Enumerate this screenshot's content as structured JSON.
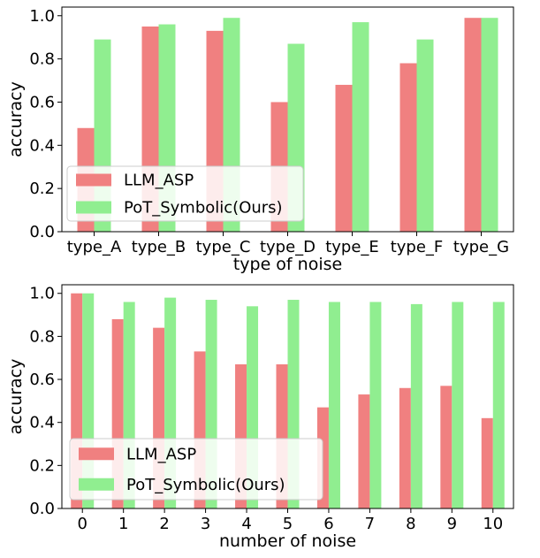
{
  "chart_data": [
    {
      "type": "bar",
      "categories": [
        "type_A",
        "type_B",
        "type_C",
        "type_D",
        "type_E",
        "type_F",
        "type_G"
      ],
      "series": [
        {
          "name": "LLM_ASP",
          "color": "#f08080",
          "values": [
            0.48,
            0.95,
            0.93,
            0.6,
            0.68,
            0.78,
            0.99
          ]
        },
        {
          "name": "PoT_Symbolic(Ours)",
          "color": "#90ee90",
          "values": [
            0.89,
            0.96,
            0.99,
            0.87,
            0.97,
            0.89,
            0.99
          ]
        }
      ],
      "xlabel": "type of noise",
      "ylabel": "accuracy",
      "ylim": [
        0.0,
        1.04
      ],
      "yticks": [
        "0.0",
        "0.2",
        "0.4",
        "0.6",
        "0.8",
        "1.0"
      ],
      "legend": "lower-left",
      "grid": false
    },
    {
      "type": "bar",
      "categories": [
        "0",
        "1",
        "2",
        "3",
        "4",
        "5",
        "6",
        "7",
        "8",
        "9",
        "10"
      ],
      "series": [
        {
          "name": "LLM_ASP",
          "color": "#f08080",
          "values": [
            1.0,
            0.88,
            0.84,
            0.73,
            0.67,
            0.67,
            0.47,
            0.53,
            0.56,
            0.57,
            0.42
          ]
        },
        {
          "name": "PoT_Symbolic(Ours)",
          "color": "#90ee90",
          "values": [
            1.0,
            0.96,
            0.98,
            0.97,
            0.94,
            0.97,
            0.96,
            0.96,
            0.95,
            0.96,
            0.96
          ]
        }
      ],
      "xlabel": "number of noise",
      "ylabel": "accuracy",
      "ylim": [
        0.0,
        1.04
      ],
      "yticks": [
        "0.0",
        "0.2",
        "0.4",
        "0.6",
        "0.8",
        "1.0"
      ],
      "legend": "lower-left",
      "grid": false
    }
  ]
}
